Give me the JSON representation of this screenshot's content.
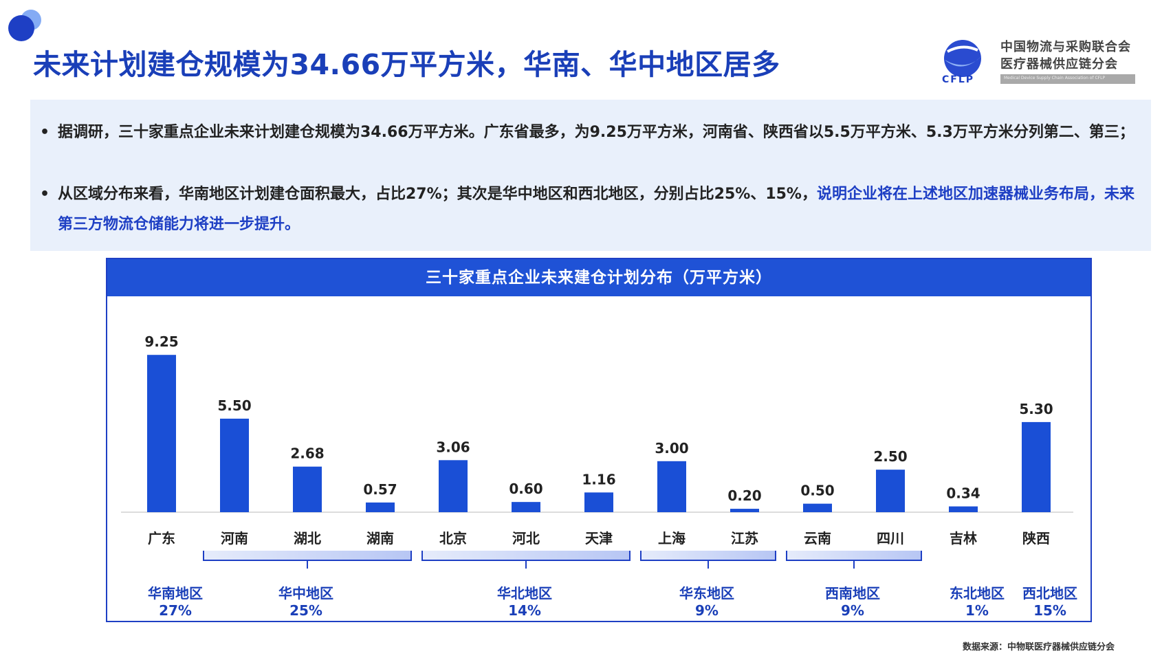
{
  "page": {
    "title": "未来计划建仓规模为34.66万平方米，华南、华中地区居多"
  },
  "logo": {
    "abbr": "CFLP",
    "line1": "中国物流与采购联合会",
    "line2": "医疗器械供应链分会",
    "english": "Medical Device Supply Chain Association of CFLP"
  },
  "bullets": [
    {
      "mark": "•",
      "text": "据调研，三十家重点企业未来计划建仓规模为34.66万平方米。广东省最多，为9.25万平方米，河南省、陕西省以5.5万平方米、5.3万平方米分列第二、第三；",
      "highlight": ""
    },
    {
      "mark": "•",
      "text": "从区域分布来看，华南地区计划建仓面积最大，占比27%；其次是华中地区和西北地区，分别占比25%、15%，",
      "highlight": "说明企业将在上述地区加速器械业务布局，未来第三方物流仓储能力将进一步提升。"
    }
  ],
  "source": "数据来源：中物联医疗器械供应链分会",
  "colors": {
    "title": "#1a3fb8",
    "bar": "#1a4fd6",
    "header": "#1f52d6",
    "panel": "#e9f0fb",
    "bracket": "#b7c6f4"
  },
  "chart_data": {
    "type": "bar",
    "title": "三十家重点企业未来建仓计划分布（万平方米）",
    "categories": [
      "广东",
      "河南",
      "湖北",
      "湖南",
      "北京",
      "河北",
      "天津",
      "上海",
      "江苏",
      "云南",
      "四川",
      "吉林",
      "陕西"
    ],
    "values": [
      9.25,
      5.5,
      2.68,
      0.57,
      3.06,
      0.6,
      1.16,
      3.0,
      0.2,
      0.5,
      2.5,
      0.34,
      5.3
    ],
    "value_labels": [
      "9.25",
      "5.50",
      "2.68",
      "0.57",
      "3.06",
      "0.60",
      "1.16",
      "3.00",
      "0.20",
      "0.50",
      "2.50",
      "0.34",
      "5.30"
    ],
    "ylim": [
      0,
      10
    ],
    "grid": false,
    "regions": [
      {
        "name": "华南地区",
        "share": "27%",
        "members": [
          0
        ]
      },
      {
        "name": "华中地区",
        "share": "25%",
        "members": [
          1,
          2,
          3
        ]
      },
      {
        "name": "华北地区",
        "share": "14%",
        "members": [
          4,
          5,
          6
        ]
      },
      {
        "name": "华东地区",
        "share": "9%",
        "members": [
          7,
          8
        ]
      },
      {
        "name": "西南地区",
        "share": "9%",
        "members": [
          9,
          10
        ]
      },
      {
        "name": "东北地区",
        "share": "1%",
        "members": [
          11
        ]
      },
      {
        "name": "西北地区",
        "share": "15%",
        "members": [
          12
        ]
      }
    ]
  }
}
